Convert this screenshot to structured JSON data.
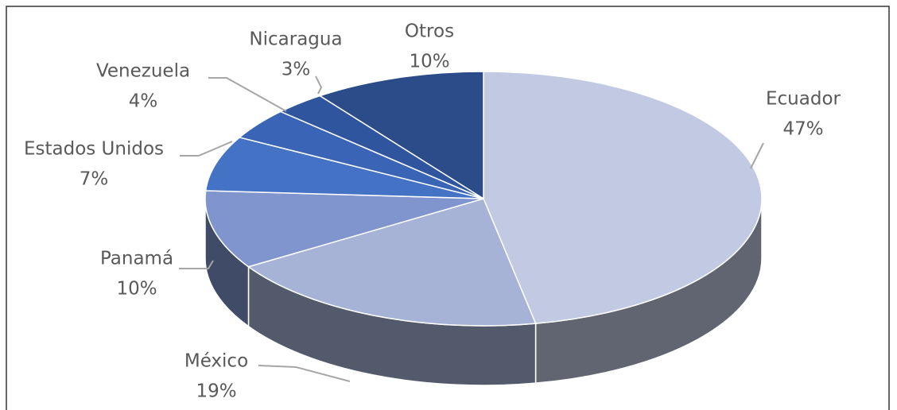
{
  "chart_data": {
    "type": "pie",
    "categories": [
      "Ecuador",
      "México",
      "Panamá",
      "Estados Unidos",
      "Venezuela",
      "Nicaragua",
      "Otros"
    ],
    "values": [
      47,
      19,
      10,
      7,
      4,
      3,
      10
    ],
    "value_labels": [
      "47%",
      "19%",
      "10%",
      "7%",
      "4%",
      "3%",
      "10%"
    ],
    "colors": [
      "#c1c9e3",
      "#a6b3d7",
      "#8095cd",
      "#4472c4",
      "#3a64b6",
      "#2f559f",
      "#2b4c88"
    ]
  }
}
